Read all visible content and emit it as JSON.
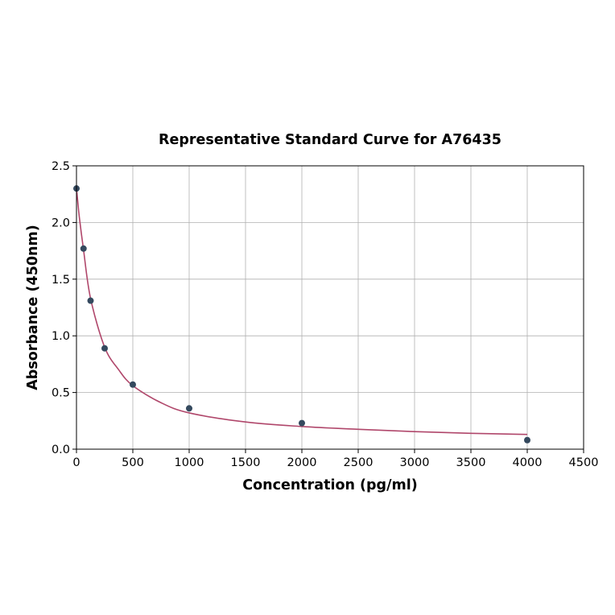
{
  "chart_data": {
    "type": "scatter",
    "title": "Representative Standard Curve for A76435",
    "xlabel": "Concentration (pg/ml)",
    "ylabel": "Absorbance (450nm)",
    "xlim": [
      0,
      4500
    ],
    "ylim": [
      0,
      2.5
    ],
    "xticks": [
      0,
      500,
      1000,
      1500,
      2000,
      2500,
      3000,
      3500,
      4000,
      4500
    ],
    "yticks": [
      0.0,
      0.5,
      1.0,
      1.5,
      2.0,
      2.5
    ],
    "grid": true,
    "points": {
      "x": [
        0,
        62.5,
        125,
        250,
        500,
        1000,
        2000,
        4000
      ],
      "y": [
        2.3,
        1.77,
        1.31,
        0.89,
        0.57,
        0.36,
        0.23,
        0.08
      ]
    },
    "fit_curve": {
      "x": [
        0,
        10,
        25,
        62.5,
        125,
        250,
        375,
        500,
        750,
        1000,
        1500,
        2000,
        2500,
        3000,
        3500,
        4000
      ],
      "y": [
        2.3,
        2.2,
        2.05,
        1.76,
        1.33,
        0.9,
        0.7,
        0.56,
        0.41,
        0.32,
        0.24,
        0.2,
        0.175,
        0.155,
        0.14,
        0.13
      ]
    },
    "colors": {
      "points": "#34495e",
      "curve": "#b0476b",
      "grid": "#b0b0b0"
    }
  }
}
